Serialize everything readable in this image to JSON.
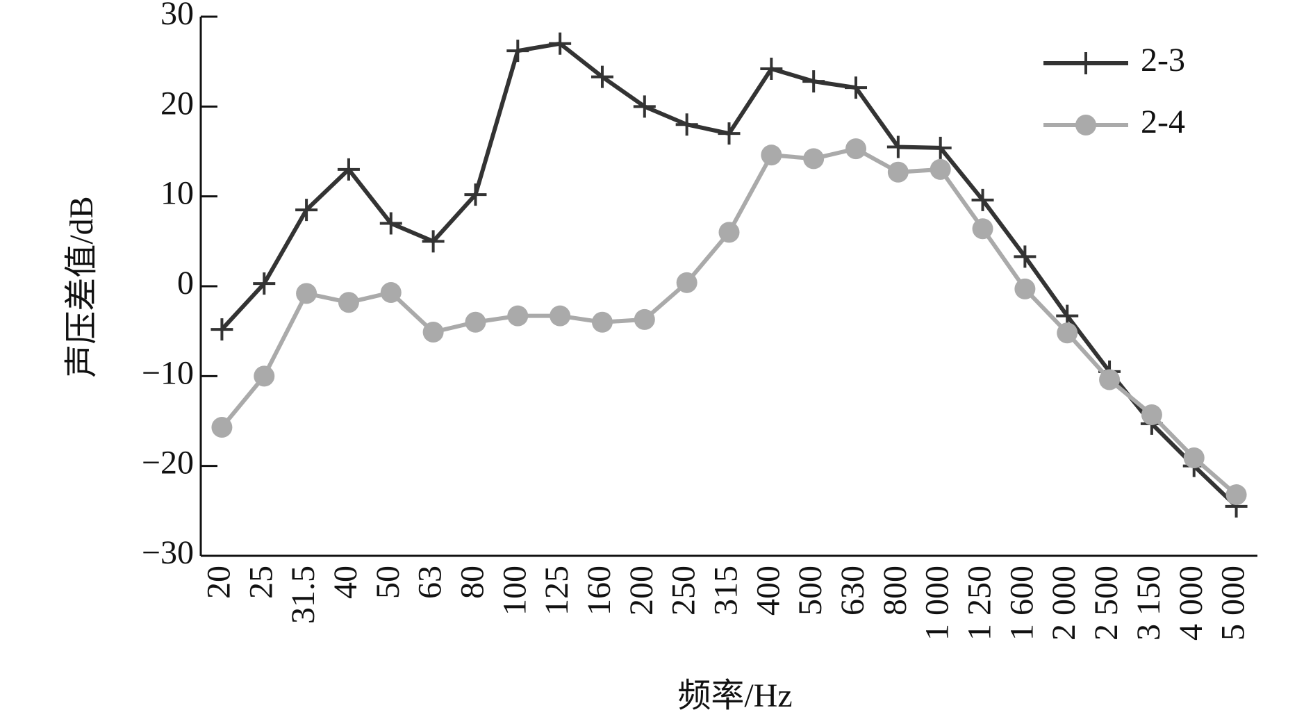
{
  "chart_data": {
    "type": "line",
    "x_label": "频率/Hz",
    "y_label": "声压差值/dB",
    "categories": [
      "20",
      "25",
      "31.5",
      "40",
      "50",
      "63",
      "80",
      "100",
      "125",
      "160",
      "200",
      "250",
      "315",
      "400",
      "500",
      "630",
      "800",
      "1 000",
      "1 250",
      "1 600",
      "2 000",
      "2 500",
      "3 150",
      "4 000",
      "5 000"
    ],
    "series": [
      {
        "name": "2-3",
        "color": "#333333",
        "marker": "plus",
        "values": [
          -4.8,
          0.3,
          8.5,
          13,
          7,
          5,
          10.2,
          26.2,
          27,
          23.3,
          20,
          18,
          17,
          24.2,
          22.8,
          22.1,
          15.5,
          15.4,
          9.6,
          3.3,
          -3.3,
          -9.5,
          -15.3,
          -20,
          -24.5
        ]
      },
      {
        "name": "2-4",
        "color": "#aaaaaa",
        "marker": "circle",
        "values": [
          -15.7,
          -10,
          -0.8,
          -1.8,
          -0.7,
          -5.1,
          -4,
          -3.3,
          -3.3,
          -4,
          -3.7,
          0.4,
          6,
          14.6,
          14.2,
          15.3,
          12.7,
          13,
          6.4,
          -0.3,
          -5.2,
          -10.4,
          -14.3,
          -19.1,
          -23.2
        ]
      }
    ],
    "ylim": [
      -30,
      30
    ],
    "yticks": [
      {
        "value": -30,
        "label": "−30"
      },
      {
        "value": -20,
        "label": "−20"
      },
      {
        "value": -10,
        "label": "−10"
      },
      0,
      10,
      20,
      30
    ],
    "grid": false,
    "legend": "upper right"
  }
}
